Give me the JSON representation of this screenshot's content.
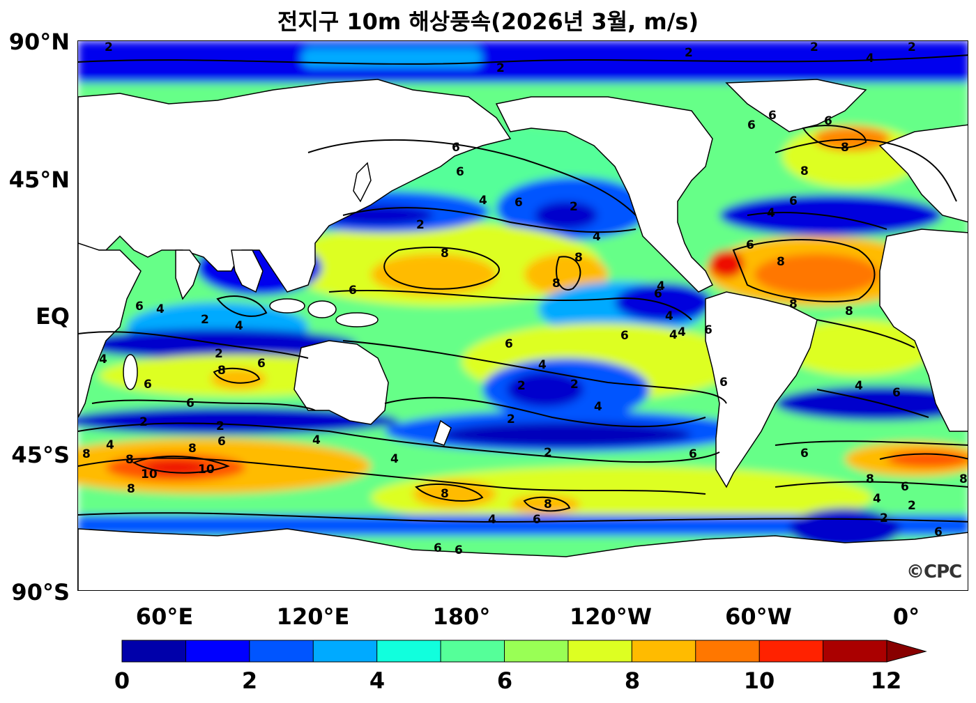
{
  "title": "전지구 10m 해상풍속(2026년 3월, m/s)",
  "logo_text": "©CPC",
  "lat_labels": [
    "90°N",
    "45°N",
    "EQ",
    "45°S",
    "90°S"
  ],
  "lon_labels": [
    "60°E",
    "120°E",
    "180°",
    "120°W",
    "60°W",
    "0°"
  ],
  "colorbar": {
    "labels": [
      "0",
      "2",
      "4",
      "6",
      "8",
      "10",
      "12"
    ],
    "colors": [
      "#0000aa",
      "#0000ff",
      "#0055ff",
      "#00aaff",
      "#11ffdd",
      "#55ff99",
      "#99ff55",
      "#ddff22",
      "#ffbb00",
      "#ff7700",
      "#ff2200",
      "#aa0000"
    ],
    "extend_color": "#880000"
  },
  "contour_labels": [
    "2",
    "4",
    "6",
    "8",
    "10"
  ]
}
